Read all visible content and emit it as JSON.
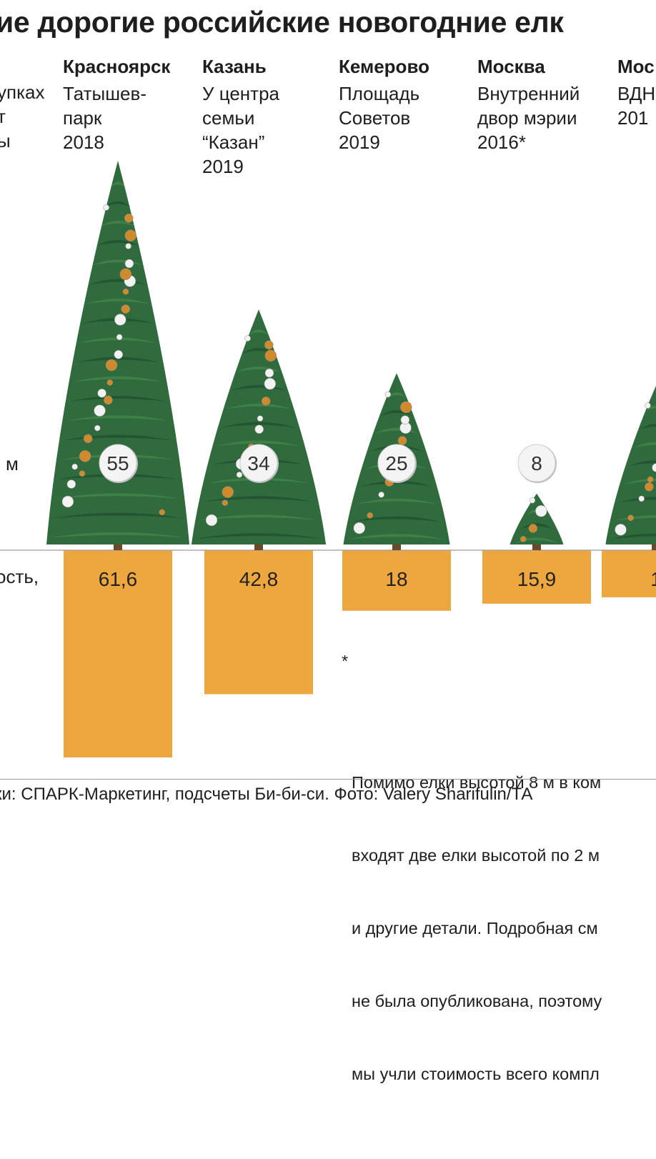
{
  "title": "ие дорогие российские новогодние елк",
  "legend": {
    "top": "упках\nт\nы",
    "height": "м",
    "cost": "ость,\n."
  },
  "footnote": {
    "mark": "*",
    "lines": [
      "Помимо елки высотой 8 м в ком",
      "входят две елки высотой по 2 м",
      "и другие детали. Подробная см",
      "не была опубликована, поэтому",
      "мы учли стоимость всего компл"
    ]
  },
  "source": "ки: СПАРК-Маркетинг, подсчеты Би-би-си. Фото: Valery Sharifulin/ТА",
  "colors": {
    "bar": "#eea73f",
    "tree_dark": "#1f4a2c",
    "tree_mid": "#2f6b3c",
    "tree_light": "#4a8a4e",
    "ornament_gold": "#d08a2e",
    "ornament_white": "#f2f2f2",
    "trunk": "#6b4a2a"
  },
  "chart_data": {
    "type": "bar",
    "categories": [
      {
        "city": "Красноярск",
        "place": "Татышев-\nпарк\n2018"
      },
      {
        "city": "Казань",
        "place": "У центра\nсемьи\n“Казан”\n2019"
      },
      {
        "city": "Кемерово",
        "place": "Площадь\nСоветов\n2019"
      },
      {
        "city": "Москва",
        "place": "Внутренний\nдвор мэрии\n2016*"
      },
      {
        "city": "Мос",
        "place": "ВДН\n201"
      }
    ],
    "series": [
      {
        "values": [
          55,
          34,
          25,
          8,
          null
        ],
        "labels": [
          "55",
          "34",
          "25",
          "8",
          ""
        ]
      },
      {
        "values": [
          61.6,
          42.8,
          18,
          15.9,
          null
        ],
        "labels": [
          "61,6",
          "42,8",
          "18",
          "15,9",
          "1"
        ]
      }
    ]
  }
}
